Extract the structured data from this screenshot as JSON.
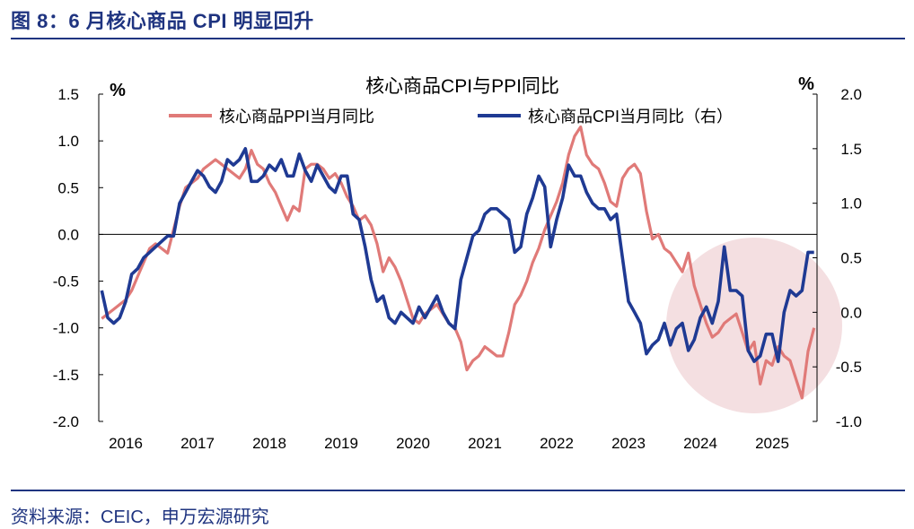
{
  "figure": {
    "title": "图 8：6 月核心商品 CPI 明显回升",
    "source": "资料来源：CEIC，申万宏源研究"
  },
  "colors": {
    "ppi": "#e07a78",
    "cpi": "#1f3a93",
    "accent": "#1f3480",
    "highlight": "#f2d9dc"
  },
  "chart_data": {
    "type": "line",
    "title": "核心商品CPI与PPI同比",
    "left_unit": "%",
    "right_unit": "%",
    "ylim_left": [
      -2.0,
      1.5
    ],
    "ylim_right": [
      -1.0,
      2.0
    ],
    "yticks_left": [
      "1.5",
      "1.0",
      "0.5",
      "0.0",
      "-0.5",
      "-1.0",
      "-1.5",
      "-2.0"
    ],
    "yticks_right": [
      "2.0",
      "1.5",
      "1.0",
      "0.5",
      "0.0",
      "-0.5",
      "-1.0"
    ],
    "x_start": "2016-01",
    "x_labels": [
      "2016",
      "2017",
      "2018",
      "2019",
      "2020",
      "2021",
      "2022",
      "2023",
      "2024",
      "2025"
    ],
    "legend_position": "top",
    "highlight_note": "shaded circle over 2023-07 to 2025-06",
    "series": [
      {
        "name": "核心商品PPI当月同比",
        "axis": "left",
        "values": [
          -0.9,
          -0.85,
          -0.8,
          -0.75,
          -0.7,
          -0.6,
          -0.45,
          -0.3,
          -0.15,
          -0.1,
          -0.15,
          -0.2,
          0.05,
          0.3,
          0.5,
          0.55,
          0.6,
          0.7,
          0.75,
          0.8,
          0.75,
          0.7,
          0.65,
          0.6,
          0.7,
          0.9,
          0.75,
          0.7,
          0.55,
          0.45,
          0.3,
          0.15,
          0.3,
          0.25,
          0.7,
          0.75,
          0.75,
          0.7,
          0.6,
          0.65,
          0.55,
          0.4,
          0.3,
          0.15,
          0.2,
          0.1,
          -0.1,
          -0.4,
          -0.25,
          -0.35,
          -0.5,
          -0.7,
          -0.9,
          -0.95,
          -0.85,
          -0.8,
          -0.75,
          -0.85,
          -0.95,
          -1.0,
          -1.15,
          -1.45,
          -1.35,
          -1.3,
          -1.2,
          -1.25,
          -1.3,
          -1.3,
          -1.05,
          -0.75,
          -0.65,
          -0.5,
          -0.3,
          -0.15,
          0.05,
          0.2,
          0.35,
          0.55,
          0.85,
          1.05,
          1.15,
          0.85,
          0.75,
          0.7,
          0.55,
          0.35,
          0.3,
          0.6,
          0.7,
          0.75,
          0.65,
          0.25,
          -0.05,
          0.0,
          -0.15,
          -0.2,
          -0.3,
          -0.4,
          -0.2,
          -0.55,
          -0.75,
          -0.95,
          -1.1,
          -1.05,
          -0.95,
          -0.9,
          -0.85,
          -1.05,
          -1.25,
          -1.15,
          -1.6,
          -1.35,
          -1.4,
          -1.2,
          -1.3,
          -1.35,
          -1.55,
          -1.75,
          -1.25,
          -1.0
        ]
      },
      {
        "name": "核心商品CPI当月同比（右）",
        "axis": "right",
        "values": [
          0.2,
          -0.05,
          -0.1,
          -0.05,
          0.1,
          0.35,
          0.4,
          0.5,
          0.55,
          0.6,
          0.65,
          0.7,
          0.7,
          1.0,
          1.1,
          1.2,
          1.3,
          1.25,
          1.15,
          1.1,
          1.2,
          1.4,
          1.35,
          1.4,
          1.5,
          1.2,
          1.2,
          1.25,
          1.35,
          1.3,
          1.4,
          1.25,
          1.25,
          1.45,
          1.3,
          1.2,
          1.35,
          1.25,
          1.15,
          1.1,
          1.25,
          1.25,
          0.9,
          0.85,
          0.6,
          0.3,
          0.1,
          0.15,
          -0.05,
          -0.1,
          0.0,
          -0.05,
          -0.1,
          0.05,
          -0.05,
          0.05,
          0.15,
          0.0,
          -0.1,
          -0.15,
          0.3,
          0.5,
          0.7,
          0.75,
          0.9,
          0.95,
          0.95,
          0.9,
          0.85,
          0.55,
          0.6,
          0.9,
          1.05,
          1.25,
          1.15,
          0.6,
          0.85,
          1.05,
          1.35,
          1.25,
          1.25,
          1.1,
          1.0,
          0.95,
          0.95,
          0.85,
          0.9,
          0.5,
          0.1,
          0.0,
          -0.1,
          -0.38,
          -0.3,
          -0.25,
          -0.1,
          -0.3,
          -0.15,
          -0.1,
          -0.35,
          -0.25,
          -0.05,
          0.05,
          -0.1,
          0.1,
          0.6,
          0.2,
          0.2,
          0.15,
          -0.35,
          -0.45,
          -0.4,
          -0.2,
          -0.2,
          -0.45,
          0.0,
          0.2,
          0.15,
          0.2,
          0.55,
          0.55
        ]
      }
    ]
  }
}
